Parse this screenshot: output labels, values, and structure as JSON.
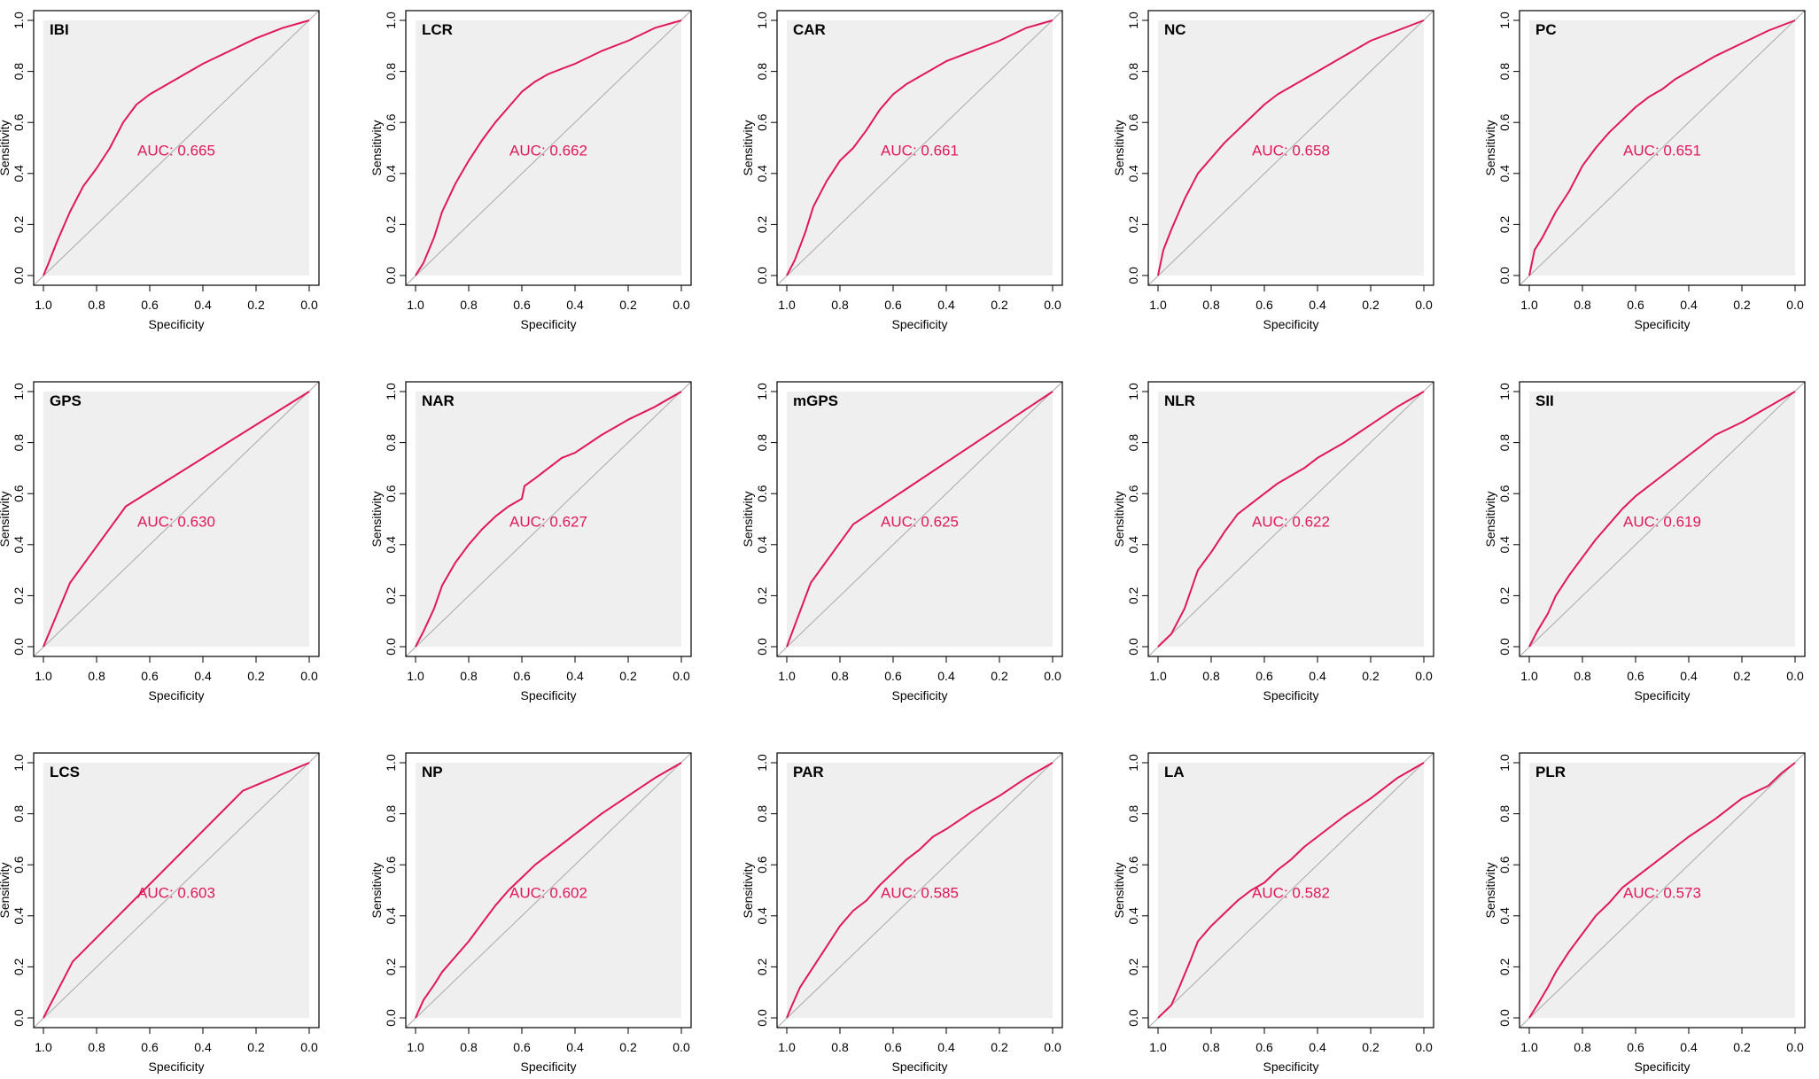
{
  "style": {
    "curve_color": "#e0185a",
    "panel_bg": "#efefef",
    "diag_color": "#a8a8a8",
    "frame_color": "#000000"
  },
  "axis": {
    "xlabel": "Specificity",
    "ylabel": "Sensitivity",
    "xticks": [
      "1.0",
      "0.8",
      "0.6",
      "0.4",
      "0.2",
      "0.0"
    ],
    "yticks": [
      "0.0",
      "0.2",
      "0.4",
      "0.6",
      "0.8",
      "1.0"
    ]
  },
  "chart_data": [
    {
      "type": "line",
      "title": "IBI",
      "auc_label": "AUC: 0.665",
      "xlabel": "Specificity",
      "ylabel": "Sensitivity",
      "xlim": [
        1,
        0
      ],
      "ylim": [
        0,
        1
      ],
      "points": [
        [
          1,
          0
        ],
        [
          0.98,
          0.05
        ],
        [
          0.95,
          0.13
        ],
        [
          0.9,
          0.25
        ],
        [
          0.85,
          0.35
        ],
        [
          0.8,
          0.42
        ],
        [
          0.75,
          0.5
        ],
        [
          0.7,
          0.6
        ],
        [
          0.65,
          0.67
        ],
        [
          0.6,
          0.71
        ],
        [
          0.55,
          0.74
        ],
        [
          0.5,
          0.77
        ],
        [
          0.45,
          0.8
        ],
        [
          0.4,
          0.83
        ],
        [
          0.3,
          0.88
        ],
        [
          0.2,
          0.93
        ],
        [
          0.1,
          0.97
        ],
        [
          0,
          1
        ]
      ]
    },
    {
      "type": "line",
      "title": "LCR",
      "auc_label": "AUC: 0.662",
      "xlabel": "Specificity",
      "ylabel": "Sensitivity",
      "xlim": [
        1,
        0
      ],
      "ylim": [
        0,
        1
      ],
      "points": [
        [
          1,
          0
        ],
        [
          0.97,
          0.05
        ],
        [
          0.93,
          0.15
        ],
        [
          0.9,
          0.25
        ],
        [
          0.85,
          0.36
        ],
        [
          0.8,
          0.45
        ],
        [
          0.75,
          0.53
        ],
        [
          0.7,
          0.6
        ],
        [
          0.65,
          0.66
        ],
        [
          0.6,
          0.72
        ],
        [
          0.55,
          0.76
        ],
        [
          0.5,
          0.79
        ],
        [
          0.45,
          0.81
        ],
        [
          0.4,
          0.83
        ],
        [
          0.3,
          0.88
        ],
        [
          0.2,
          0.92
        ],
        [
          0.1,
          0.97
        ],
        [
          0,
          1
        ]
      ]
    },
    {
      "type": "line",
      "title": "CAR",
      "auc_label": "AUC: 0.661",
      "xlabel": "Specificity",
      "ylabel": "Sensitivity",
      "xlim": [
        1,
        0
      ],
      "ylim": [
        0,
        1
      ],
      "points": [
        [
          1,
          0
        ],
        [
          0.97,
          0.06
        ],
        [
          0.93,
          0.17
        ],
        [
          0.9,
          0.27
        ],
        [
          0.85,
          0.37
        ],
        [
          0.8,
          0.45
        ],
        [
          0.75,
          0.5
        ],
        [
          0.7,
          0.57
        ],
        [
          0.65,
          0.65
        ],
        [
          0.6,
          0.71
        ],
        [
          0.55,
          0.75
        ],
        [
          0.5,
          0.78
        ],
        [
          0.45,
          0.81
        ],
        [
          0.4,
          0.84
        ],
        [
          0.3,
          0.88
        ],
        [
          0.2,
          0.92
        ],
        [
          0.1,
          0.97
        ],
        [
          0,
          1
        ]
      ]
    },
    {
      "type": "line",
      "title": "NC",
      "auc_label": "AUC: 0.658",
      "xlabel": "Specificity",
      "ylabel": "Sensitivity",
      "xlim": [
        1,
        0
      ],
      "ylim": [
        0,
        1
      ],
      "points": [
        [
          1,
          0
        ],
        [
          0.98,
          0.1
        ],
        [
          0.95,
          0.18
        ],
        [
          0.9,
          0.3
        ],
        [
          0.85,
          0.4
        ],
        [
          0.8,
          0.46
        ],
        [
          0.75,
          0.52
        ],
        [
          0.7,
          0.57
        ],
        [
          0.65,
          0.62
        ],
        [
          0.6,
          0.67
        ],
        [
          0.55,
          0.71
        ],
        [
          0.5,
          0.74
        ],
        [
          0.45,
          0.77
        ],
        [
          0.4,
          0.8
        ],
        [
          0.3,
          0.86
        ],
        [
          0.2,
          0.92
        ],
        [
          0.1,
          0.96
        ],
        [
          0,
          1
        ]
      ]
    },
    {
      "type": "line",
      "title": "PC",
      "auc_label": "AUC: 0.651",
      "xlabel": "Specificity",
      "ylabel": "Sensitivity",
      "xlim": [
        1,
        0
      ],
      "ylim": [
        0,
        1
      ],
      "points": [
        [
          1,
          0
        ],
        [
          0.98,
          0.1
        ],
        [
          0.95,
          0.15
        ],
        [
          0.9,
          0.25
        ],
        [
          0.85,
          0.33
        ],
        [
          0.8,
          0.43
        ],
        [
          0.75,
          0.5
        ],
        [
          0.7,
          0.56
        ],
        [
          0.65,
          0.61
        ],
        [
          0.6,
          0.66
        ],
        [
          0.55,
          0.7
        ],
        [
          0.5,
          0.73
        ],
        [
          0.45,
          0.77
        ],
        [
          0.4,
          0.8
        ],
        [
          0.3,
          0.86
        ],
        [
          0.2,
          0.91
        ],
        [
          0.1,
          0.96
        ],
        [
          0,
          1
        ]
      ]
    },
    {
      "type": "line",
      "title": "GPS",
      "auc_label": "AUC: 0.630",
      "xlabel": "Specificity",
      "ylabel": "Sensitivity",
      "xlim": [
        1,
        0
      ],
      "ylim": [
        0,
        1
      ],
      "points": [
        [
          1,
          0
        ],
        [
          0.9,
          0.25
        ],
        [
          0.69,
          0.55
        ],
        [
          0,
          1
        ]
      ]
    },
    {
      "type": "line",
      "title": "NAR",
      "auc_label": "AUC: 0.627",
      "xlabel": "Specificity",
      "ylabel": "Sensitivity",
      "xlim": [
        1,
        0
      ],
      "ylim": [
        0,
        1
      ],
      "points": [
        [
          1,
          0
        ],
        [
          0.97,
          0.06
        ],
        [
          0.93,
          0.15
        ],
        [
          0.9,
          0.24
        ],
        [
          0.85,
          0.33
        ],
        [
          0.8,
          0.4
        ],
        [
          0.75,
          0.46
        ],
        [
          0.7,
          0.51
        ],
        [
          0.65,
          0.55
        ],
        [
          0.6,
          0.58
        ],
        [
          0.59,
          0.63
        ],
        [
          0.55,
          0.66
        ],
        [
          0.5,
          0.7
        ],
        [
          0.45,
          0.74
        ],
        [
          0.4,
          0.76
        ],
        [
          0.3,
          0.83
        ],
        [
          0.2,
          0.89
        ],
        [
          0.1,
          0.94
        ],
        [
          0,
          1
        ]
      ]
    },
    {
      "type": "line",
      "title": "mGPS",
      "auc_label": "AUC: 0.625",
      "xlabel": "Specificity",
      "ylabel": "Sensitivity",
      "xlim": [
        1,
        0
      ],
      "ylim": [
        0,
        1
      ],
      "points": [
        [
          1,
          0
        ],
        [
          0.91,
          0.25
        ],
        [
          0.75,
          0.48
        ],
        [
          0,
          1
        ]
      ]
    },
    {
      "type": "line",
      "title": "NLR",
      "auc_label": "AUC: 0.622",
      "xlabel": "Specificity",
      "ylabel": "Sensitivity",
      "xlim": [
        1,
        0
      ],
      "ylim": [
        0,
        1
      ],
      "points": [
        [
          1,
          0
        ],
        [
          0.95,
          0.05
        ],
        [
          0.9,
          0.15
        ],
        [
          0.85,
          0.3
        ],
        [
          0.8,
          0.37
        ],
        [
          0.75,
          0.45
        ],
        [
          0.7,
          0.52
        ],
        [
          0.65,
          0.56
        ],
        [
          0.6,
          0.6
        ],
        [
          0.55,
          0.64
        ],
        [
          0.5,
          0.67
        ],
        [
          0.45,
          0.7
        ],
        [
          0.4,
          0.74
        ],
        [
          0.3,
          0.8
        ],
        [
          0.2,
          0.87
        ],
        [
          0.1,
          0.94
        ],
        [
          0,
          1
        ]
      ]
    },
    {
      "type": "line",
      "title": "SII",
      "auc_label": "AUC: 0.619",
      "xlabel": "Specificity",
      "ylabel": "Sensitivity",
      "xlim": [
        1,
        0
      ],
      "ylim": [
        0,
        1
      ],
      "points": [
        [
          1,
          0
        ],
        [
          0.97,
          0.06
        ],
        [
          0.93,
          0.13
        ],
        [
          0.9,
          0.2
        ],
        [
          0.85,
          0.28
        ],
        [
          0.8,
          0.35
        ],
        [
          0.75,
          0.42
        ],
        [
          0.7,
          0.48
        ],
        [
          0.65,
          0.54
        ],
        [
          0.6,
          0.59
        ],
        [
          0.55,
          0.63
        ],
        [
          0.5,
          0.67
        ],
        [
          0.45,
          0.71
        ],
        [
          0.4,
          0.75
        ],
        [
          0.3,
          0.83
        ],
        [
          0.2,
          0.88
        ],
        [
          0.1,
          0.94
        ],
        [
          0,
          1
        ]
      ]
    },
    {
      "type": "line",
      "title": "LCS",
      "auc_label": "AUC: 0.603",
      "xlabel": "Specificity",
      "ylabel": "Sensitivity",
      "xlim": [
        1,
        0
      ],
      "ylim": [
        0,
        1
      ],
      "points": [
        [
          1,
          0
        ],
        [
          0.89,
          0.22
        ],
        [
          0.25,
          0.89
        ],
        [
          0,
          1
        ]
      ]
    },
    {
      "type": "line",
      "title": "NP",
      "auc_label": "AUC: 0.602",
      "xlabel": "Specificity",
      "ylabel": "Sensitivity",
      "xlim": [
        1,
        0
      ],
      "ylim": [
        0,
        1
      ],
      "points": [
        [
          1,
          0
        ],
        [
          0.97,
          0.07
        ],
        [
          0.93,
          0.13
        ],
        [
          0.9,
          0.18
        ],
        [
          0.85,
          0.24
        ],
        [
          0.8,
          0.3
        ],
        [
          0.75,
          0.37
        ],
        [
          0.7,
          0.44
        ],
        [
          0.65,
          0.5
        ],
        [
          0.6,
          0.55
        ],
        [
          0.55,
          0.6
        ],
        [
          0.5,
          0.64
        ],
        [
          0.45,
          0.68
        ],
        [
          0.4,
          0.72
        ],
        [
          0.3,
          0.8
        ],
        [
          0.2,
          0.87
        ],
        [
          0.1,
          0.94
        ],
        [
          0,
          1
        ]
      ]
    },
    {
      "type": "line",
      "title": "PAR",
      "auc_label": "AUC: 0.585",
      "xlabel": "Specificity",
      "ylabel": "Sensitivity",
      "xlim": [
        1,
        0
      ],
      "ylim": [
        0,
        1
      ],
      "points": [
        [
          1,
          0
        ],
        [
          0.98,
          0.05
        ],
        [
          0.95,
          0.12
        ],
        [
          0.9,
          0.2
        ],
        [
          0.85,
          0.28
        ],
        [
          0.8,
          0.36
        ],
        [
          0.75,
          0.42
        ],
        [
          0.7,
          0.46
        ],
        [
          0.65,
          0.52
        ],
        [
          0.6,
          0.57
        ],
        [
          0.55,
          0.62
        ],
        [
          0.5,
          0.66
        ],
        [
          0.45,
          0.71
        ],
        [
          0.4,
          0.74
        ],
        [
          0.3,
          0.81
        ],
        [
          0.2,
          0.87
        ],
        [
          0.1,
          0.94
        ],
        [
          0,
          1
        ]
      ]
    },
    {
      "type": "line",
      "title": "LA",
      "auc_label": "AUC: 0.582",
      "xlabel": "Specificity",
      "ylabel": "Sensitivity",
      "xlim": [
        1,
        0
      ],
      "ylim": [
        0,
        1
      ],
      "points": [
        [
          1,
          0
        ],
        [
          0.95,
          0.05
        ],
        [
          0.92,
          0.12
        ],
        [
          0.88,
          0.22
        ],
        [
          0.85,
          0.3
        ],
        [
          0.8,
          0.36
        ],
        [
          0.75,
          0.41
        ],
        [
          0.7,
          0.46
        ],
        [
          0.65,
          0.5
        ],
        [
          0.6,
          0.53
        ],
        [
          0.55,
          0.58
        ],
        [
          0.5,
          0.62
        ],
        [
          0.45,
          0.67
        ],
        [
          0.4,
          0.71
        ],
        [
          0.3,
          0.79
        ],
        [
          0.2,
          0.86
        ],
        [
          0.1,
          0.94
        ],
        [
          0,
          1
        ]
      ]
    },
    {
      "type": "line",
      "title": "PLR",
      "auc_label": "AUC: 0.573",
      "xlabel": "Specificity",
      "ylabel": "Sensitivity",
      "xlim": [
        1,
        0
      ],
      "ylim": [
        0,
        1
      ],
      "points": [
        [
          1,
          0
        ],
        [
          0.97,
          0.05
        ],
        [
          0.93,
          0.12
        ],
        [
          0.9,
          0.18
        ],
        [
          0.85,
          0.26
        ],
        [
          0.8,
          0.33
        ],
        [
          0.75,
          0.4
        ],
        [
          0.7,
          0.45
        ],
        [
          0.65,
          0.51
        ],
        [
          0.6,
          0.55
        ],
        [
          0.55,
          0.59
        ],
        [
          0.5,
          0.63
        ],
        [
          0.45,
          0.67
        ],
        [
          0.4,
          0.71
        ],
        [
          0.3,
          0.78
        ],
        [
          0.2,
          0.86
        ],
        [
          0.1,
          0.91
        ],
        [
          0.05,
          0.96
        ],
        [
          0,
          1
        ]
      ]
    }
  ]
}
